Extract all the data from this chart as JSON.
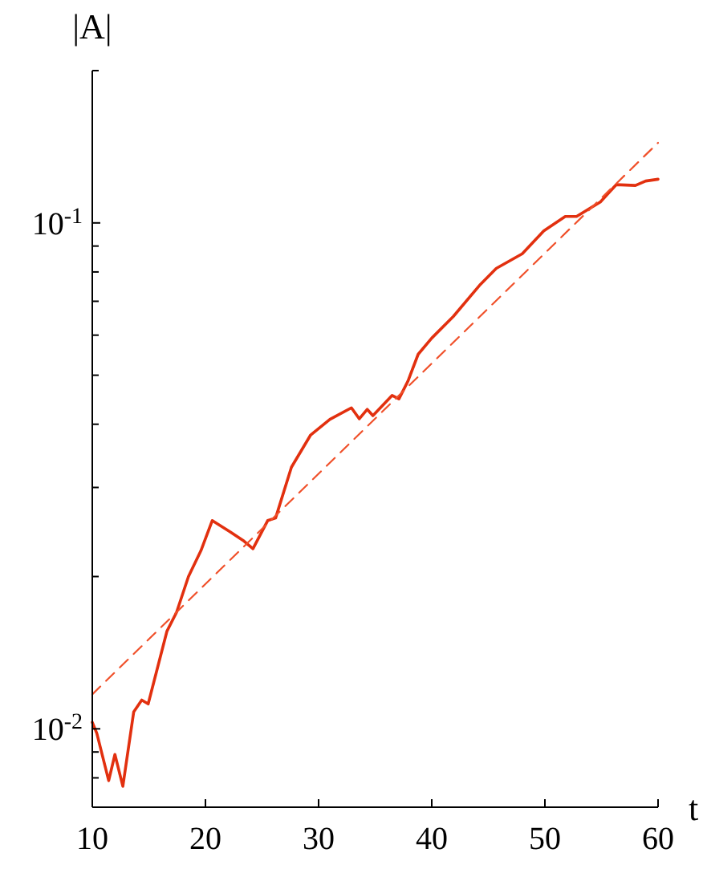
{
  "chart_data": {
    "type": "line",
    "xlabel": "t",
    "ylabel": "|A|",
    "log": "y",
    "grid": false,
    "marker": "none",
    "xlim": [
      10,
      60
    ],
    "xticks": [
      10,
      20,
      30,
      40,
      50,
      60
    ],
    "ylim": [
      0.007,
      0.2
    ],
    "yticks": [
      {
        "value": 0.008,
        "label": null
      },
      {
        "value": 0.009,
        "label": null
      },
      {
        "value": 0.01,
        "label": "10$^{-2}$"
      },
      {
        "value": 0.02,
        "label": null
      },
      {
        "value": 0.03,
        "label": null
      },
      {
        "value": 0.04,
        "label": null
      },
      {
        "value": 0.05,
        "label": null
      },
      {
        "value": 0.06,
        "label": null
      },
      {
        "value": 0.07,
        "label": null
      },
      {
        "value": 0.08,
        "label": null
      },
      {
        "value": 0.09,
        "label": null
      },
      {
        "value": 0.1,
        "label": "10$^{-1}$"
      },
      {
        "value": 0.2,
        "label": null
      }
    ],
    "series": [
      {
        "color": "#e2300f",
        "line_style": "solid",
        "x": [
          10,
          10.4,
          11.45,
          12,
          12.7,
          13.66,
          14.37,
          14.94,
          15.8,
          16.6,
          17.45,
          18.5,
          19.6,
          20.6,
          22.2,
          23.4,
          24.2,
          25.5,
          26.2,
          27.6,
          29.3,
          31,
          32.9,
          33.6,
          34.3,
          34.8,
          36.5,
          37.1,
          37.9,
          38.8,
          40,
          41.9,
          44.3,
          45.7,
          48,
          49.9,
          51.8,
          52.8,
          54.9,
          56.3,
          58,
          58.9,
          60
        ],
        "values": [
          0.0103,
          0.0098,
          0.0079,
          0.0089,
          0.0077,
          0.0108,
          0.0114,
          0.0112,
          0.0133,
          0.0156,
          0.017,
          0.02,
          0.0225,
          0.0258,
          0.0245,
          0.0235,
          0.0227,
          0.0258,
          0.0261,
          0.0329,
          0.0381,
          0.0409,
          0.0431,
          0.041,
          0.0428,
          0.0416,
          0.0456,
          0.0449,
          0.0487,
          0.055,
          0.0592,
          0.0653,
          0.0756,
          0.0813,
          0.0869,
          0.0964,
          0.103,
          0.103,
          0.11,
          0.119,
          0.1186,
          0.121,
          0.122
        ]
      },
      {
        "type": "line",
        "color": "#f0502a",
        "line_style": "dashed",
        "x": [
          10,
          60
        ],
        "values": [
          0.0117,
          0.144
        ]
      }
    ]
  }
}
